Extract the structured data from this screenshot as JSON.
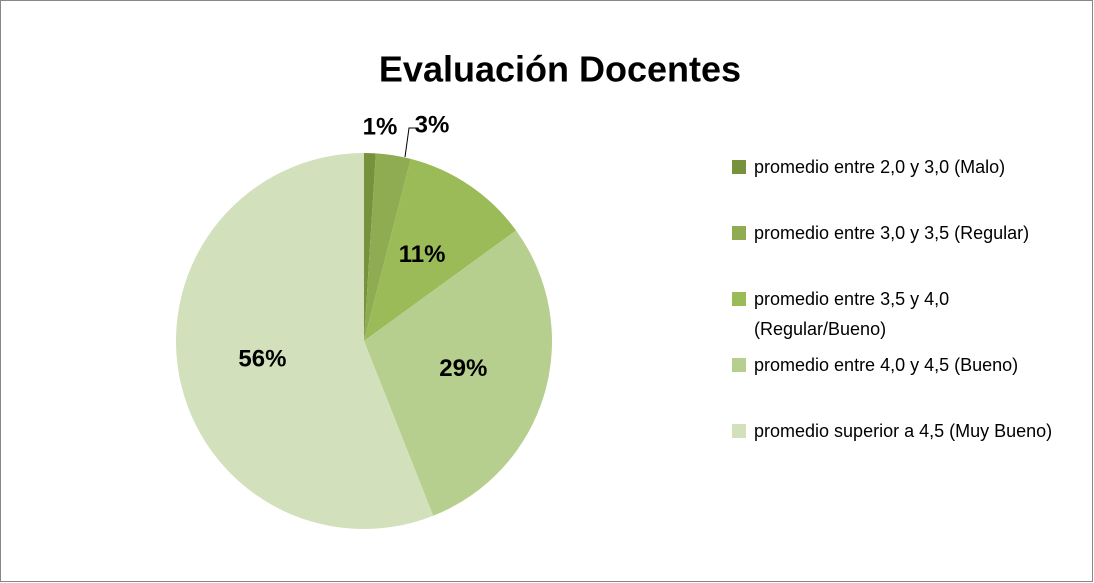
{
  "chart_data": {
    "type": "pie",
    "title": "Evaluación Docentes",
    "categories": [
      "promedio entre 2,0 y 3,0 (Malo)",
      "promedio entre 3,0 y 3,5 (Regular)",
      "promedio entre 3,5 y 4,0 (Regular/Bueno)",
      "promedio entre 4,0 y 4,5 (Bueno)",
      "promedio superior a 4,5 (Muy Bueno)"
    ],
    "values": [
      1,
      3,
      11,
      29,
      56
    ],
    "value_labels": [
      "1%",
      "3%",
      "11%",
      "29%",
      "56%"
    ],
    "colors": [
      "#76923c",
      "#8fac52",
      "#9bbb59",
      "#b7cf8e",
      "#d2e0bb"
    ],
    "legend": "right"
  }
}
